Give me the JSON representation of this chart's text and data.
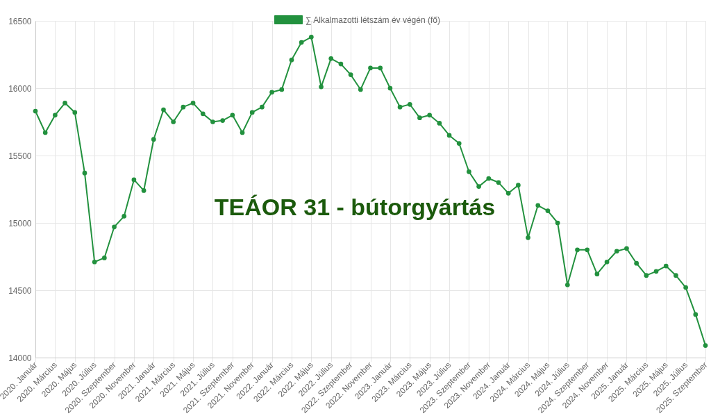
{
  "chart_data": {
    "type": "line",
    "title": "TEÁOR 31 - bútorgyártás",
    "categories": [
      "2020. Január",
      null,
      "2020. Március",
      null,
      "2020. Május",
      null,
      "2020. Július",
      null,
      "2020. Szeptember",
      null,
      "2020. November",
      null,
      "2021. Január",
      null,
      "2021. Március",
      null,
      "2021. Május",
      null,
      "2021. Július",
      null,
      "2021. Szeptember",
      null,
      "2021. November",
      null,
      "2022. Január",
      null,
      "2022. Március",
      null,
      "2022. Május",
      null,
      "2022. Július",
      null,
      "2022. Szeptember",
      null,
      "2022. November",
      null,
      "2023. Január",
      null,
      "2023. Március",
      null,
      "2023. Május",
      null,
      "2023. Július",
      null,
      "2023. Szeptember",
      null,
      "2023. November",
      null,
      "2024. Január",
      null,
      "2024. Március",
      null,
      "2024. Május",
      null,
      "2024. Július",
      null,
      "2024. Szeptember",
      null,
      "2024. November",
      null,
      "2025. Január",
      null,
      "2025. Március",
      null,
      "2025. Május",
      null,
      "2025. Július",
      null,
      "2025. Szeptember"
    ],
    "series": [
      {
        "name": "∑ Alkalmazotti létszám év végén (fő)",
        "color": "#22913e",
        "values": [
          15830,
          15670,
          15800,
          15890,
          15820,
          15370,
          14710,
          14740,
          14970,
          15050,
          15320,
          15240,
          15620,
          15840,
          15750,
          15860,
          15890,
          15810,
          15750,
          15760,
          15800,
          15670,
          15820,
          15860,
          15970,
          15990,
          16210,
          16340,
          16380,
          16010,
          16220,
          16180,
          16100,
          15990,
          16150,
          16150,
          16000,
          15860,
          15880,
          15780,
          15800,
          15740,
          15650,
          15590,
          15380,
          15270,
          15330,
          15300,
          15220,
          15280,
          14890,
          15130,
          15090,
          15000,
          14540,
          14800,
          14800,
          14620,
          14710,
          14790,
          14810,
          14700,
          14610,
          14640,
          14680,
          14610,
          14520,
          14320,
          14090
        ]
      }
    ],
    "ylim": [
      14000,
      16500
    ],
    "yticks": [
      14000,
      14500,
      15000,
      15500,
      16000,
      16500
    ],
    "grid": true,
    "legend": "top",
    "marker": "circle"
  }
}
